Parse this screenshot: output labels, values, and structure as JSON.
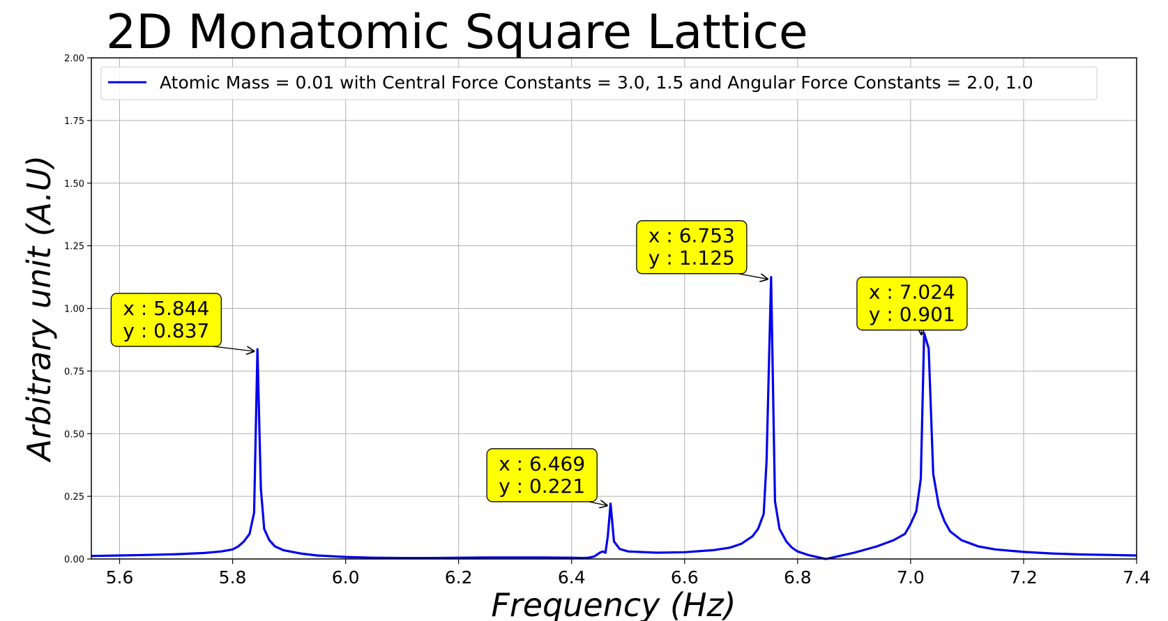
{
  "chart_data": {
    "type": "line",
    "title": "2D Monatomic Square Lattice",
    "xlabel": "Frequency (Hz)",
    "ylabel": "Arbitrary unit (A.U)",
    "xlim": [
      5.55,
      7.4
    ],
    "ylim": [
      0,
      2.0
    ],
    "xticks": [
      "5.6",
      "5.8",
      "6.0",
      "6.2",
      "6.4",
      "6.6",
      "6.8",
      "7.0",
      "7.2",
      "7.4"
    ],
    "yticks": [
      "0.00",
      "0.25",
      "0.50",
      "0.75",
      "1.00",
      "1.25",
      "1.50",
      "1.75",
      "2.00"
    ],
    "grid": true,
    "legend_position": "top-left",
    "series": [
      {
        "name": "Atomic Mass = 0.01 with Central Force Constants = 3.0, 1.5 and Angular Force Constants = 2.0, 1.0",
        "color": "#0000ee",
        "x": [
          5.55,
          5.6,
          5.65,
          5.7,
          5.75,
          5.78,
          5.8,
          5.81,
          5.82,
          5.83,
          5.838,
          5.844,
          5.85,
          5.856,
          5.865,
          5.875,
          5.89,
          5.92,
          5.95,
          6.0,
          6.05,
          6.1,
          6.15,
          6.2,
          6.25,
          6.3,
          6.35,
          6.4,
          6.42,
          6.43,
          6.44,
          6.45,
          6.455,
          6.46,
          6.464,
          6.469,
          6.475,
          6.485,
          6.5,
          6.55,
          6.6,
          6.65,
          6.68,
          6.7,
          6.72,
          6.73,
          6.74,
          6.745,
          6.753,
          6.76,
          6.768,
          6.78,
          6.79,
          6.8,
          6.82,
          6.84,
          6.85,
          6.87,
          6.9,
          6.94,
          6.97,
          6.99,
          7.0,
          7.01,
          7.018,
          7.024,
          7.032,
          7.04,
          7.05,
          7.06,
          7.07,
          7.09,
          7.12,
          7.15,
          7.2,
          7.25,
          7.3,
          7.35,
          7.4
        ],
        "y": [
          0.012,
          0.014,
          0.016,
          0.019,
          0.024,
          0.03,
          0.038,
          0.05,
          0.07,
          0.1,
          0.185,
          0.837,
          0.28,
          0.12,
          0.075,
          0.05,
          0.035,
          0.022,
          0.014,
          0.008,
          0.005,
          0.004,
          0.004,
          0.005,
          0.006,
          0.006,
          0.006,
          0.005,
          0.004,
          0.005,
          0.01,
          0.025,
          0.03,
          0.025,
          0.09,
          0.221,
          0.07,
          0.04,
          0.03,
          0.025,
          0.027,
          0.035,
          0.045,
          0.06,
          0.09,
          0.12,
          0.18,
          0.39,
          1.125,
          0.23,
          0.12,
          0.07,
          0.045,
          0.03,
          0.015,
          0.005,
          0.0,
          0.01,
          0.025,
          0.05,
          0.075,
          0.1,
          0.14,
          0.19,
          0.32,
          0.901,
          0.84,
          0.34,
          0.21,
          0.15,
          0.11,
          0.075,
          0.05,
          0.038,
          0.028,
          0.022,
          0.018,
          0.016,
          0.014
        ]
      }
    ],
    "annotations": [
      {
        "x": 5.844,
        "y": 0.837,
        "line1": "x : 5.844",
        "line2": "y : 0.837",
        "label_x": 5.585,
        "label_y": 1.06
      },
      {
        "x": 6.469,
        "y": 0.221,
        "line1": "x : 6.469",
        "line2": "y : 0.221",
        "label_x": 6.25,
        "label_y": 0.44
      },
      {
        "x": 6.753,
        "y": 1.125,
        "line1": "x : 6.753",
        "line2": "y : 1.125",
        "label_x": 6.515,
        "label_y": 1.35
      },
      {
        "x": 7.024,
        "y": 0.901,
        "line1": "x : 7.024",
        "line2": "y : 0.901",
        "label_x": 6.905,
        "label_y": 1.125
      }
    ],
    "annotation_box_color": "#ffff00"
  }
}
